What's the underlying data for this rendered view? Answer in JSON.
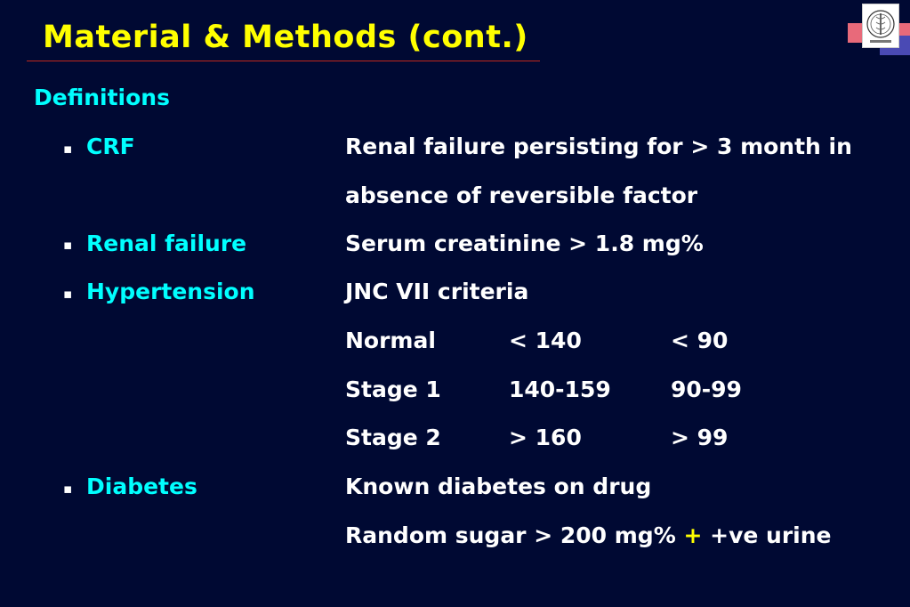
{
  "title": "Material & Methods (cont.)",
  "section_heading": "Definitions",
  "colors": {
    "background": "#000933",
    "title": "#FFFF00",
    "term": "#00FFFF",
    "text": "#FFFFFF",
    "rule": "#C0281C"
  },
  "definitions": {
    "crf": {
      "term": "CRF",
      "line1": "Renal failure persisting for > 3 month in",
      "line2": "absence of reversible factor"
    },
    "renal_failure": {
      "term": "Renal failure",
      "line1": "Serum creatinine > 1.8 mg%"
    },
    "hypertension": {
      "term": "Hypertension",
      "line1": "JNC VII criteria",
      "rows": [
        {
          "stage": "Normal",
          "systolic": "< 140",
          "diastolic": "< 90"
        },
        {
          "stage": "Stage 1",
          "systolic": "140-159",
          "diastolic": "90-99"
        },
        {
          "stage": "Stage 2",
          "systolic": "> 160",
          "diastolic": "> 99"
        }
      ]
    },
    "diabetes": {
      "term": "Diabetes",
      "line1": "Known diabetes on drug",
      "line2_part1": "Random sugar > 200 mg%",
      "line2_plus": "+",
      "line2_part2": "+ve urine"
    }
  },
  "bullet_glyph": "▪",
  "logo_icon": "institution-emblem-icon"
}
